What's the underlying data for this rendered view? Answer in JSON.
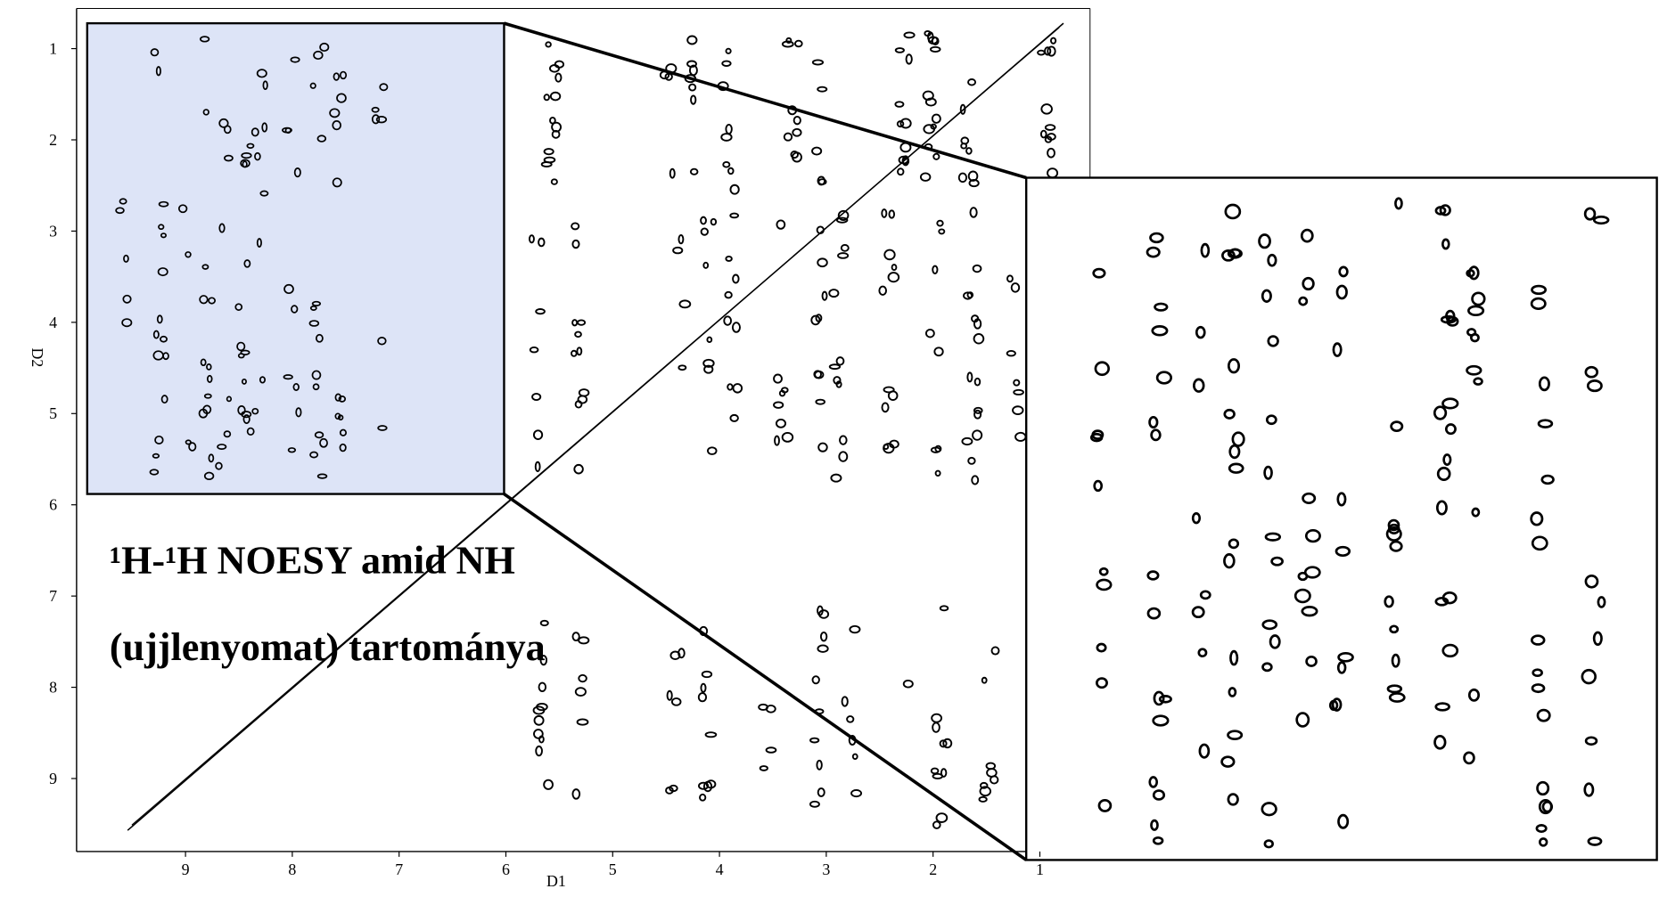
{
  "title": [
    "¹H-¹H NOESY amid NH",
    "(ujjlenyomat) tartománya"
  ],
  "x_axis": {
    "label": "D1",
    "lim": [
      10.02,
      0.53
    ],
    "ticks": [
      9,
      8,
      7,
      6,
      5,
      4,
      3,
      2,
      1
    ]
  },
  "y_axis": {
    "label": "D2",
    "lim": [
      0.56,
      9.8
    ],
    "ticks": [
      1,
      2,
      3,
      4,
      5,
      6,
      7,
      8,
      9
    ]
  }
}
